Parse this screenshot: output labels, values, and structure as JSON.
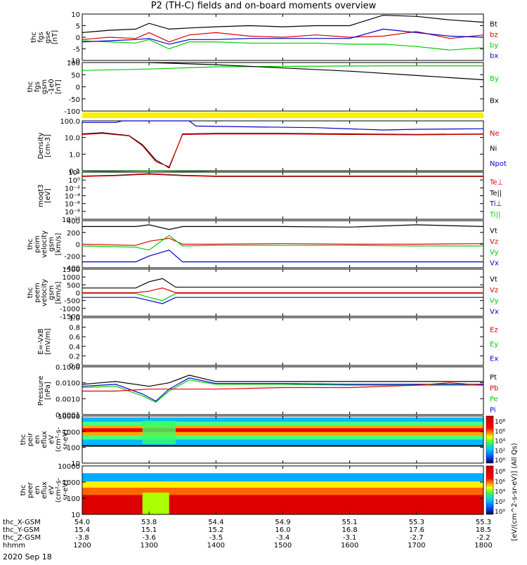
{
  "title": "P2 (TH-C) fields and on-board moments overview",
  "date": "2020 Sep 18",
  "colors": {
    "black": "#000000",
    "red": "#e00000",
    "green": "#00cc00",
    "blue": "#0000cc",
    "yellow": "#ffee00"
  },
  "chart_data": [
    {
      "type": "line",
      "ylabel": [
        "thc",
        "fgs",
        "gse",
        "[nT]"
      ],
      "yticks": [
        "10",
        "5",
        "0",
        "-5",
        "-10"
      ],
      "ylim": [
        -10,
        10
      ],
      "legend": [
        {
          "name": "Bt",
          "color": "black"
        },
        {
          "name": "bz",
          "color": "red"
        },
        {
          "name": "by",
          "color": "green"
        },
        {
          "name": "bx",
          "color": "blue"
        }
      ],
      "series": [
        {
          "name": "Bt",
          "color": "black",
          "x": [
            12.0,
            12.4,
            12.8,
            13.0,
            13.3,
            13.6,
            14.0,
            14.5,
            15.0,
            15.5,
            16.0,
            16.5,
            17.0,
            17.5,
            18.0
          ],
          "y": [
            2.0,
            3.0,
            3.5,
            6.0,
            3.5,
            4.0,
            4.5,
            5.0,
            4.5,
            5.0,
            5.0,
            9.5,
            9.0,
            7.5,
            6.5
          ]
        },
        {
          "name": "bz",
          "color": "red",
          "x": [
            12.0,
            12.4,
            12.8,
            13.0,
            13.3,
            13.6,
            14.0,
            14.5,
            15.0,
            15.5,
            16.0,
            16.5,
            17.0,
            17.5,
            18.0
          ],
          "y": [
            -1.0,
            0.0,
            -0.5,
            2.0,
            -2.0,
            1.0,
            2.0,
            0.5,
            0.0,
            1.0,
            0.0,
            0.5,
            2.5,
            -0.5,
            1.0
          ]
        },
        {
          "name": "by",
          "color": "green",
          "x": [
            12.0,
            12.4,
            12.8,
            13.0,
            13.3,
            13.6,
            14.0,
            14.5,
            15.0,
            15.5,
            16.0,
            16.5,
            17.0,
            17.5,
            18.0
          ],
          "y": [
            -1.5,
            -2.0,
            -2.5,
            -1.0,
            -5.0,
            -2.0,
            -2.0,
            -2.5,
            -2.5,
            -2.5,
            -3.0,
            -3.0,
            -4.0,
            -5.5,
            -4.5
          ]
        },
        {
          "name": "bx",
          "color": "blue",
          "x": [
            12.0,
            12.4,
            12.8,
            13.0,
            13.3,
            13.6,
            14.0,
            14.5,
            15.0,
            15.5,
            16.0,
            16.5,
            17.0,
            17.5,
            18.0
          ],
          "y": [
            -2.0,
            -1.5,
            -1.0,
            -0.5,
            -3.0,
            -1.0,
            -1.0,
            -0.5,
            -0.5,
            -0.5,
            -0.5,
            3.5,
            2.0,
            0.5,
            0.0
          ]
        }
      ]
    },
    {
      "type": "line",
      "ylabel": [
        "thc",
        "fgs",
        "gsm",
        "-1e0",
        "[nT]"
      ],
      "yticks": [
        "100",
        "50",
        "0",
        "-50",
        "-100"
      ],
      "ylim": [
        -125,
        100
      ],
      "legend": [
        {
          "name": "By",
          "color": "green"
        },
        {
          "name": "Bx",
          "color": "black"
        }
      ],
      "series": [
        {
          "name": "By",
          "color": "green",
          "x": [
            12.0,
            13.0,
            14.0,
            15.0,
            16.0,
            17.0,
            18.0
          ],
          "y": [
            63,
            70,
            80,
            82,
            84,
            85,
            85
          ]
        },
        {
          "name": "Bx",
          "color": "black",
          "x": [
            13.0,
            14.0,
            15.0,
            16.0,
            17.0,
            18.0
          ],
          "y": [
            100,
            90,
            75,
            60,
            40,
            20
          ]
        }
      ]
    },
    {
      "type": "line",
      "ylabel": [
        "Density",
        "[cm-3]"
      ],
      "log": true,
      "yticks": [
        "100.0",
        "10.0",
        "1.0",
        "0.1"
      ],
      "ylim": [
        0.03,
        200
      ],
      "legend": [
        {
          "name": "Ne",
          "color": "red"
        },
        {
          "name": "Ni",
          "color": "black"
        },
        {
          "name": "Npot",
          "color": "blue"
        }
      ],
      "series": [
        {
          "name": "Npot",
          "color": "blue",
          "x": [
            12.0,
            12.5,
            12.6,
            13.6,
            13.7,
            14.5,
            15.5,
            16.5,
            17.0,
            18.0
          ],
          "y": [
            150,
            150,
            200,
            200,
            80,
            70,
            60,
            40,
            45,
            50
          ]
        },
        {
          "name": "Ni",
          "color": "black",
          "x": [
            12.0,
            12.3,
            12.7,
            12.9,
            13.1,
            13.3,
            13.5,
            14.0,
            15.0,
            16.0,
            17.0,
            18.0
          ],
          "y": [
            20,
            25,
            15,
            3,
            0.2,
            0.05,
            20,
            22,
            22,
            20,
            18,
            20
          ]
        },
        {
          "name": "Ne",
          "color": "red",
          "x": [
            12.0,
            12.3,
            12.7,
            12.9,
            13.1,
            13.3,
            13.5,
            14.0,
            15.0,
            16.0,
            17.0,
            18.0
          ],
          "y": [
            18,
            22,
            14,
            2.5,
            0.15,
            0.06,
            18,
            20,
            20,
            18,
            17,
            19
          ]
        }
      ]
    },
    {
      "type": "line",
      "ylabel": [
        "moqt3",
        "[eV]"
      ],
      "yticks": [
        "10²",
        "10⁰",
        "10⁻²",
        "10⁻⁴",
        "10⁻⁶",
        "10⁻⁸",
        "10⁻¹⁰"
      ],
      "ylim": [
        -10,
        2
      ],
      "legend": [
        {
          "name": "Te⊥",
          "color": "red"
        },
        {
          "name": "Te||",
          "color": "black"
        },
        {
          "name": "Ti⊥",
          "color": "blue"
        },
        {
          "name": "Ti||",
          "color": "green"
        }
      ],
      "series": [
        {
          "name": "Ti||",
          "color": "green",
          "x": [
            12.0,
            13.0,
            14.0,
            18.0
          ],
          "y": [
            2.1,
            2.3,
            2.1,
            2.1
          ]
        },
        {
          "name": "Te||",
          "color": "black",
          "x": [
            12.0,
            12.5,
            13.0,
            13.5,
            14.0,
            18.0
          ],
          "y": [
            1.0,
            1.2,
            1.6,
            1.2,
            1.0,
            1.0
          ]
        },
        {
          "name": "Te⊥",
          "color": "red",
          "x": [
            12.0,
            12.5,
            13.0,
            13.5,
            14.0,
            18.0
          ],
          "y": [
            0.9,
            1.1,
            1.5,
            1.1,
            0.9,
            0.9
          ]
        }
      ]
    },
    {
      "type": "line",
      "ylabel": [
        "thc",
        "peim",
        "velocity",
        "gsm",
        "[km/s]"
      ],
      "yticks": [
        "400",
        "200",
        "0",
        "-200",
        "-400"
      ],
      "ylim": [
        -400,
        400
      ],
      "legend": [
        {
          "name": "Vt",
          "color": "black"
        },
        {
          "name": "Vz",
          "color": "red"
        },
        {
          "name": "Vy",
          "color": "green"
        },
        {
          "name": "Vx",
          "color": "blue"
        }
      ],
      "series": [
        {
          "name": "Vt",
          "color": "black",
          "x": [
            12.0,
            12.8,
            13.0,
            13.3,
            13.5,
            14.0,
            15.0,
            16.0,
            17.0,
            18.0
          ],
          "y": [
            300,
            300,
            330,
            250,
            300,
            300,
            300,
            290,
            330,
            300
          ]
        },
        {
          "name": "Vz",
          "color": "red",
          "x": [
            12.0,
            12.8,
            13.0,
            13.3,
            13.5,
            14.0,
            15.0,
            16.0,
            17.0,
            18.0
          ],
          "y": [
            0,
            -20,
            50,
            100,
            0,
            0,
            10,
            0,
            0,
            10
          ]
        },
        {
          "name": "Vy",
          "color": "green",
          "x": [
            12.0,
            12.8,
            13.0,
            13.3,
            13.5,
            14.0,
            15.0,
            16.0,
            17.0,
            18.0
          ],
          "y": [
            -30,
            -50,
            -100,
            150,
            -30,
            -20,
            -20,
            -20,
            -30,
            -30
          ]
        },
        {
          "name": "Vx",
          "color": "blue",
          "x": [
            12.0,
            12.8,
            13.0,
            13.3,
            13.5,
            14.0,
            15.0,
            16.0,
            17.0,
            18.0
          ],
          "y": [
            -300,
            -300,
            -200,
            -100,
            -300,
            -300,
            -300,
            -300,
            -300,
            -300
          ]
        }
      ]
    },
    {
      "type": "line",
      "ylabel": [
        "thc",
        "peem",
        "velocity",
        "gsm",
        "[km/s]"
      ],
      "yticks": [
        "1500",
        "1000",
        "500",
        "0",
        "-500",
        "-1000",
        "-1500"
      ],
      "ylim": [
        -1500,
        1500
      ],
      "legend": [
        {
          "name": "Vt",
          "color": "black"
        },
        {
          "name": "Vz",
          "color": "red"
        },
        {
          "name": "Vy",
          "color": "green"
        },
        {
          "name": "Vx",
          "color": "blue"
        }
      ],
      "series": [
        {
          "name": "Vt",
          "color": "black",
          "x": [
            12.0,
            12.8,
            13.0,
            13.2,
            13.4,
            14.0,
            15.0,
            16.0,
            17.0,
            18.0
          ],
          "y": [
            300,
            300,
            700,
            900,
            350,
            350,
            350,
            350,
            350,
            350
          ]
        },
        {
          "name": "Vz",
          "color": "red",
          "x": [
            12.0,
            12.8,
            13.0,
            13.2,
            13.4,
            14.0,
            15.0,
            16.0,
            17.0,
            18.0
          ],
          "y": [
            0,
            0,
            100,
            300,
            0,
            0,
            0,
            0,
            0,
            0
          ]
        },
        {
          "name": "Vy",
          "color": "green",
          "x": [
            12.0,
            12.8,
            13.0,
            13.2,
            13.4,
            14.0,
            15.0,
            16.0,
            17.0,
            18.0
          ],
          "y": [
            -50,
            -50,
            -300,
            -500,
            -50,
            -50,
            -50,
            -50,
            -50,
            -50
          ]
        },
        {
          "name": "Vx",
          "color": "blue",
          "x": [
            12.0,
            12.8,
            13.0,
            13.2,
            13.4,
            14.0,
            15.0,
            16.0,
            17.0,
            18.0
          ],
          "y": [
            -300,
            -300,
            -500,
            -700,
            -300,
            -300,
            -300,
            -300,
            -300,
            -300
          ]
        }
      ]
    },
    {
      "type": "line",
      "ylabel": [
        "E=-VxB",
        "[mV/m]"
      ],
      "yticks": [
        "1.0",
        "0.8",
        "0.6",
        "0.4",
        "0.2",
        "0.0"
      ],
      "ylim": [
        0,
        1
      ],
      "legend": [
        {
          "name": "Ez",
          "color": "red"
        },
        {
          "name": "Ey",
          "color": "green"
        },
        {
          "name": "Ex",
          "color": "blue"
        }
      ],
      "series": []
    },
    {
      "type": "line",
      "ylabel": [
        "Pressure",
        "[nPa]"
      ],
      "log": true,
      "yticks": [
        "0.1000",
        "0.0100",
        "0.0010",
        "0.0001"
      ],
      "ylim": [
        0.0001,
        0.1
      ],
      "legend": [
        {
          "name": "Pt",
          "color": "black"
        },
        {
          "name": "Pb",
          "color": "red"
        },
        {
          "name": "Pe",
          "color": "green"
        },
        {
          "name": "Pi",
          "color": "blue"
        }
      ],
      "series": [
        {
          "name": "Pt",
          "color": "black",
          "x": [
            12.0,
            12.5,
            13.0,
            13.3,
            13.6,
            14.0,
            15.0,
            16.0,
            17.0,
            18.0
          ],
          "y": [
            0.008,
            0.012,
            0.006,
            0.01,
            0.03,
            0.012,
            0.012,
            0.012,
            0.012,
            0.012
          ]
        },
        {
          "name": "Pi",
          "color": "blue",
          "x": [
            12.0,
            12.5,
            12.9,
            13.1,
            13.3,
            13.6,
            14.0,
            15.0,
            16.0,
            17.0,
            18.0
          ],
          "y": [
            0.006,
            0.008,
            0.002,
            0.0007,
            0.004,
            0.02,
            0.009,
            0.009,
            0.008,
            0.008,
            0.008
          ]
        },
        {
          "name": "Pe",
          "color": "green",
          "x": [
            12.0,
            12.5,
            12.9,
            13.1,
            13.3,
            13.6,
            14.0,
            15.0,
            16.0,
            17.0,
            18.0
          ],
          "y": [
            0.005,
            0.006,
            0.0015,
            0.0006,
            0.003,
            0.015,
            0.008,
            0.008,
            0.007,
            0.007,
            0.007
          ]
        },
        {
          "name": "Pb",
          "color": "red",
          "x": [
            12.0,
            12.5,
            13.0,
            13.5,
            14.0,
            15.0,
            16.0,
            17.0,
            17.5,
            18.0
          ],
          "y": [
            0.003,
            0.003,
            0.004,
            0.004,
            0.004,
            0.005,
            0.005,
            0.007,
            0.01,
            0.007
          ]
        }
      ]
    },
    {
      "type": "heatmap",
      "ylabel": [
        "thc",
        "peir",
        "en",
        "eflux",
        "eV",
        "(cm²-s-",
        "sr-eV)"
      ],
      "log": true,
      "yticks": [
        "10000",
        "1000",
        "100",
        "10"
      ],
      "ylim": [
        5,
        20000
      ],
      "colorbar_ticks": [
        "10⁸",
        "10⁶",
        "10⁴",
        "10²",
        "10⁰"
      ]
    },
    {
      "type": "heatmap",
      "ylabel": [
        "thc",
        "peer",
        "en",
        "eflux",
        "eV",
        "(cm²-s-",
        "sr-eV)"
      ],
      "log": true,
      "yticks": [
        "10000",
        "1000",
        "100",
        "10"
      ],
      "ylim": [
        5,
        20000
      ],
      "colorbar_ticks": [
        "10⁸",
        "10⁶",
        "10⁴",
        "10²",
        "10⁰"
      ]
    }
  ],
  "colorbar_label": "[eV/(cm^2-s-sr-eV)] (All Qs)",
  "xaxis": {
    "row_labels": [
      "thc_X-GSM",
      "thc_Y-GSM",
      "thc_Z-GSM",
      "hhmm"
    ],
    "columns": [
      [
        "54.0",
        "15.4",
        "-3.8",
        "1200"
      ],
      [
        "53.8",
        "15.1",
        "-3.6",
        "1300"
      ],
      [
        "54.4",
        "15.2",
        "-3.5",
        "1400"
      ],
      [
        "54.9",
        "16.0",
        "-3.4",
        "1500"
      ],
      [
        "55.1",
        "16.8",
        "-3.1",
        "1600"
      ],
      [
        "55.3",
        "17.6",
        "-2.7",
        "1700"
      ],
      [
        "55.3",
        "18.5",
        "-2.2",
        "1800"
      ]
    ]
  }
}
